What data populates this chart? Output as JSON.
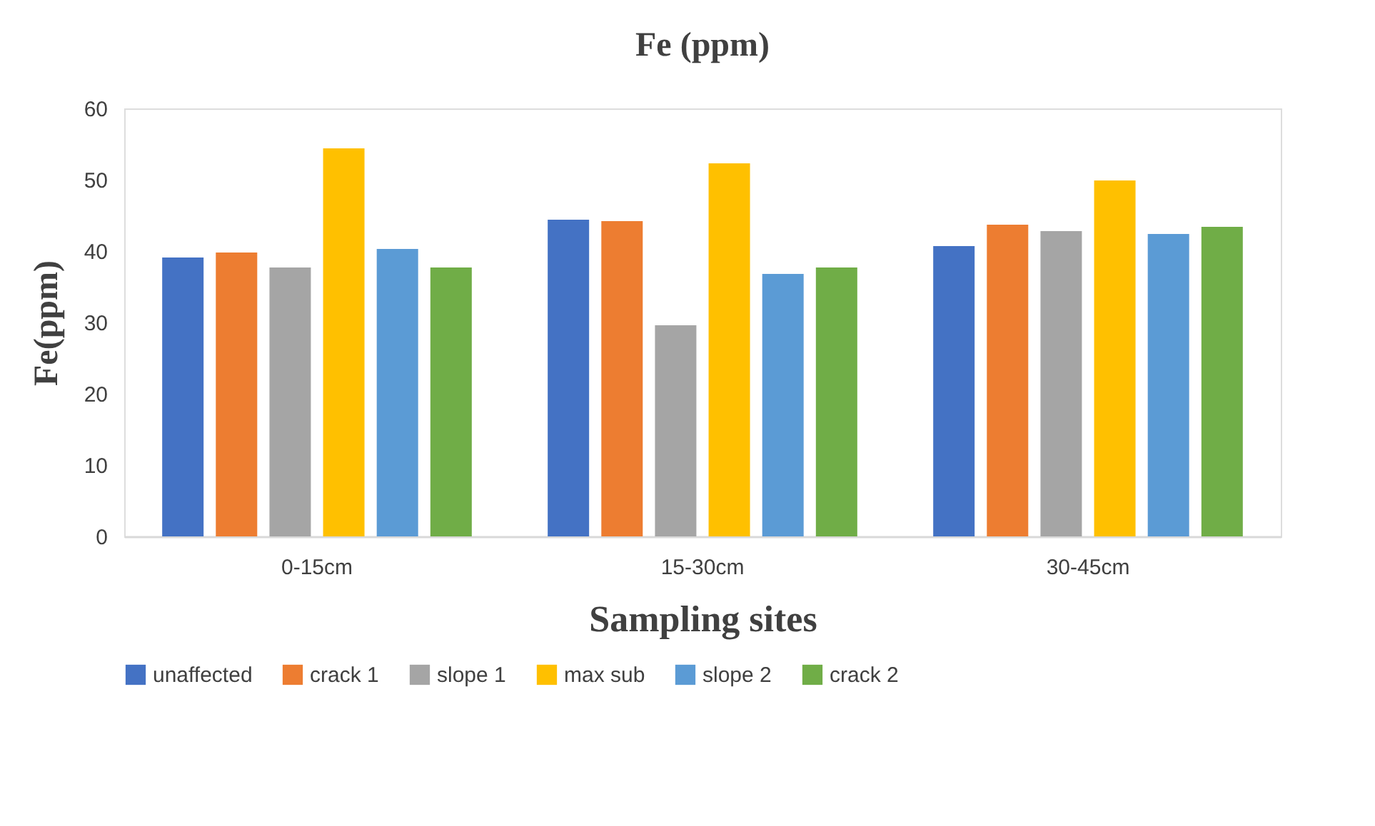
{
  "chart_data": {
    "type": "bar",
    "title": "Fe (ppm)",
    "xlabel": "Sampling sites",
    "ylabel": "Fe(ppm)",
    "categories": [
      "0-15cm",
      "15-30cm",
      "30-45cm"
    ],
    "series": [
      {
        "name": "unaffected",
        "color": "#4472c4",
        "values": [
          39.1,
          44.4,
          40.7
        ]
      },
      {
        "name": "crack 1",
        "color": "#ed7d31",
        "values": [
          39.8,
          44.2,
          43.7
        ]
      },
      {
        "name": "slope 1",
        "color": "#a5a5a5",
        "values": [
          37.7,
          29.6,
          42.8
        ]
      },
      {
        "name": "max sub",
        "color": "#ffc000",
        "values": [
          54.4,
          52.3,
          49.9
        ]
      },
      {
        "name": "slope 2",
        "color": "#5b9bd5",
        "values": [
          40.3,
          36.8,
          42.4
        ]
      },
      {
        "name": "crack 2",
        "color": "#70ad47",
        "values": [
          37.7,
          37.7,
          43.4
        ]
      }
    ],
    "ylim": [
      0,
      60
    ],
    "yticks": [
      0,
      10,
      20,
      30,
      40,
      50,
      60
    ],
    "grid": false,
    "legend": "bottom"
  }
}
